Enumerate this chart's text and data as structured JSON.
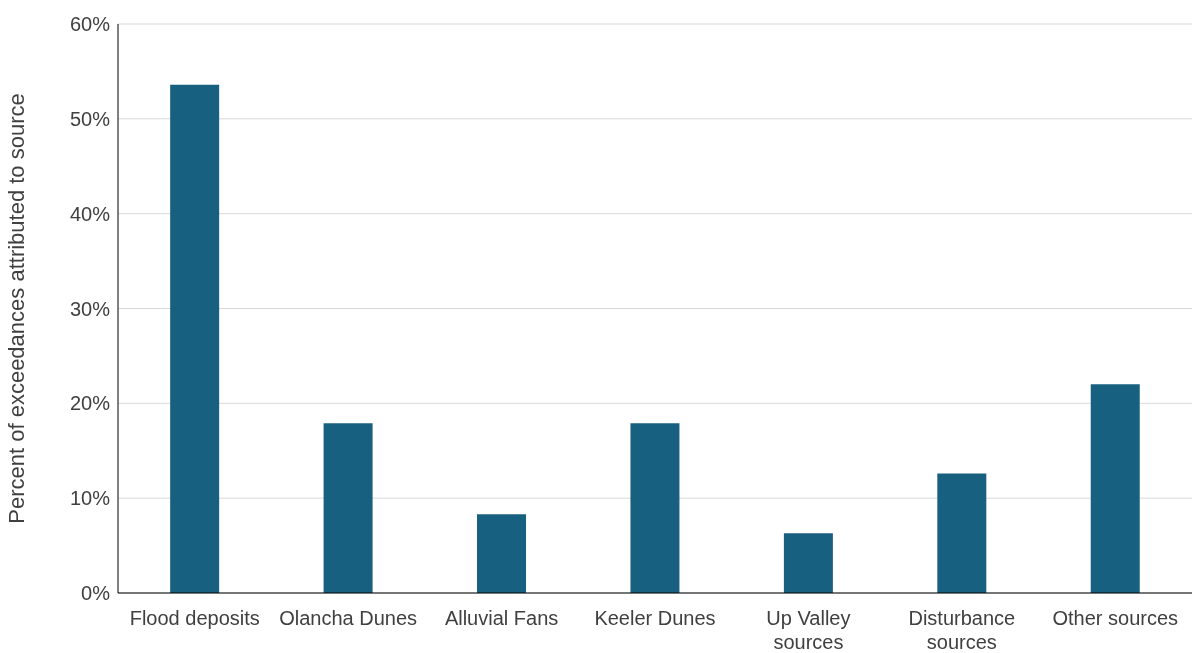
{
  "chart_data": {
    "type": "bar",
    "ylabel": "Percent of exceedances attributed to source",
    "categories": [
      "Flood deposits",
      "Olancha Dunes",
      "Alluvial Fans",
      "Keeler Dunes",
      "Up Valley sources",
      "Disturbance sources",
      "Other sources"
    ],
    "values": [
      53.6,
      17.9,
      8.3,
      17.9,
      6.3,
      12.6,
      22.0
    ],
    "color": "#17607f",
    "ylim": [
      0,
      60
    ],
    "yticks": [
      {
        "value": 0,
        "label": "0%"
      },
      {
        "value": 10,
        "label": "10%"
      },
      {
        "value": 20,
        "label": "20%"
      },
      {
        "value": 30,
        "label": "30%"
      },
      {
        "value": 40,
        "label": "40%"
      },
      {
        "value": 50,
        "label": "50%"
      },
      {
        "value": 60,
        "label": "60%"
      }
    ],
    "grid": "y",
    "legend": false
  }
}
